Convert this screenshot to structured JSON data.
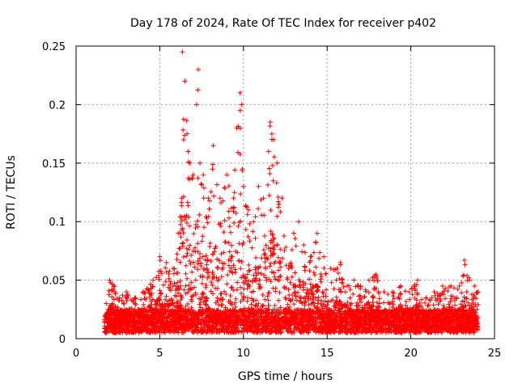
{
  "chart_data": {
    "type": "scatter",
    "title": "Day 178 of 2024, Rate Of TEC Index for receiver p402",
    "xlabel": "GPS time / hours",
    "ylabel": "ROTI / TECUs",
    "xlim": [
      0,
      25
    ],
    "ylim": [
      0,
      0.25
    ],
    "xticks": [
      0,
      5,
      10,
      15,
      20,
      25
    ],
    "xtick_labels": [
      "0",
      "5",
      "10",
      "15",
      "20",
      "25"
    ],
    "yticks": [
      0,
      0.05,
      0.1,
      0.15,
      0.2,
      0.25
    ],
    "ytick_labels": [
      "0",
      "0.05",
      "0.1",
      "0.15",
      "0.2",
      "0.25"
    ],
    "grid": true,
    "marker": "+",
    "series_color": "#ff0000",
    "series": [
      {
        "name": "ROTI",
        "x_range": [
          1.7,
          24.0
        ],
        "x": [
          1.8,
          2.0,
          2.3,
          2.6,
          3.0,
          3.5,
          4.0,
          4.6,
          5.0,
          5.4,
          5.8,
          6.1,
          6.3,
          6.35,
          6.5,
          6.8,
          7.0,
          7.2,
          7.3,
          7.4,
          7.6,
          7.9,
          8.2,
          8.6,
          9.0,
          9.4,
          9.6,
          9.8,
          9.9,
          10.0,
          10.3,
          10.6,
          10.9,
          11.2,
          11.5,
          11.6,
          11.8,
          12.0,
          12.3,
          12.7,
          13.0,
          13.3,
          13.6,
          14.0,
          14.4,
          14.8,
          15.2,
          15.6,
          15.8,
          16.2,
          16.6,
          17.0,
          17.5,
          17.9,
          18.4,
          18.9,
          19.4,
          19.9,
          20.4,
          20.9,
          21.4,
          21.9,
          22.4,
          22.9,
          23.2,
          23.5,
          23.8,
          24.0
        ],
        "y": [
          0.03,
          0.05,
          0.045,
          0.035,
          0.04,
          0.035,
          0.04,
          0.05,
          0.07,
          0.065,
          0.06,
          0.09,
          0.12,
          0.245,
          0.22,
          0.15,
          0.14,
          0.2,
          0.23,
          0.15,
          0.14,
          0.12,
          0.165,
          0.12,
          0.14,
          0.12,
          0.18,
          0.21,
          0.2,
          0.13,
          0.11,
          0.1,
          0.13,
          0.12,
          0.16,
          0.185,
          0.17,
          0.15,
          0.12,
          0.06,
          0.09,
          0.1,
          0.08,
          0.07,
          0.09,
          0.07,
          0.06,
          0.06,
          0.065,
          0.045,
          0.05,
          0.045,
          0.05,
          0.055,
          0.04,
          0.04,
          0.045,
          0.04,
          0.05,
          0.035,
          0.04,
          0.045,
          0.045,
          0.045,
          0.067,
          0.05,
          0.045,
          0.04
        ],
        "baseline_min": 0.005
      }
    ]
  }
}
